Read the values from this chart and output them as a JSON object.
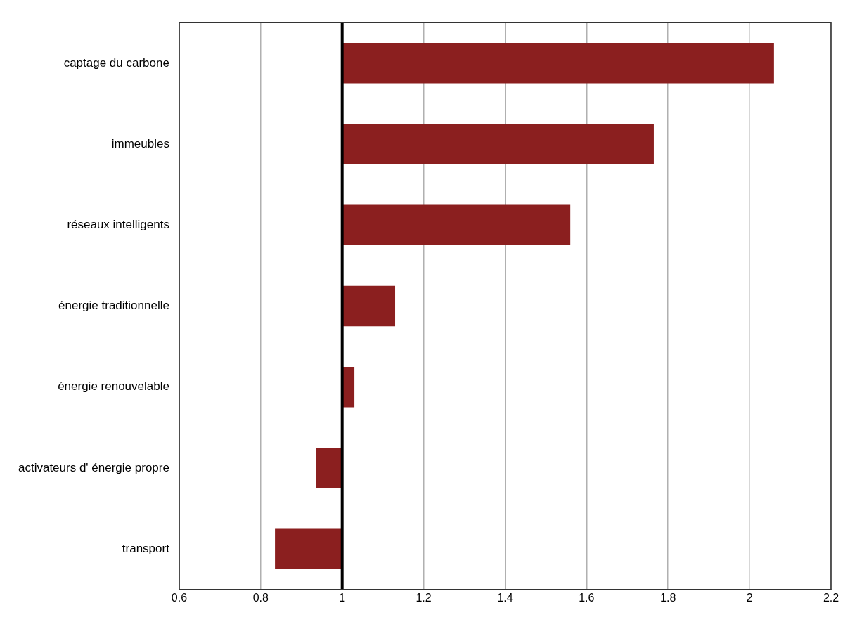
{
  "chart_data": {
    "type": "bar",
    "orientation": "horizontal",
    "categories": [
      "captage du carbone",
      "immeubles",
      "réseaux intelligents",
      "énergie traditionnelle",
      "énergie renouvelable",
      "activateurs d' énergie propre",
      "transport"
    ],
    "base": [
      1,
      1,
      1,
      1,
      1,
      1,
      1
    ],
    "values": [
      1.06,
      0.765,
      0.56,
      0.13,
      0.03,
      -0.065,
      -0.165
    ],
    "color": "#8b1f1f",
    "xlim": [
      0.6,
      2.2
    ],
    "xticks": [
      0.6,
      0.8,
      1,
      1.2,
      1.4,
      1.6,
      1.8,
      2,
      2.2
    ],
    "ref_lines": [
      {
        "axis": "x",
        "value": 1,
        "color": "#000000"
      }
    ],
    "grid": "x",
    "legend": false
  }
}
